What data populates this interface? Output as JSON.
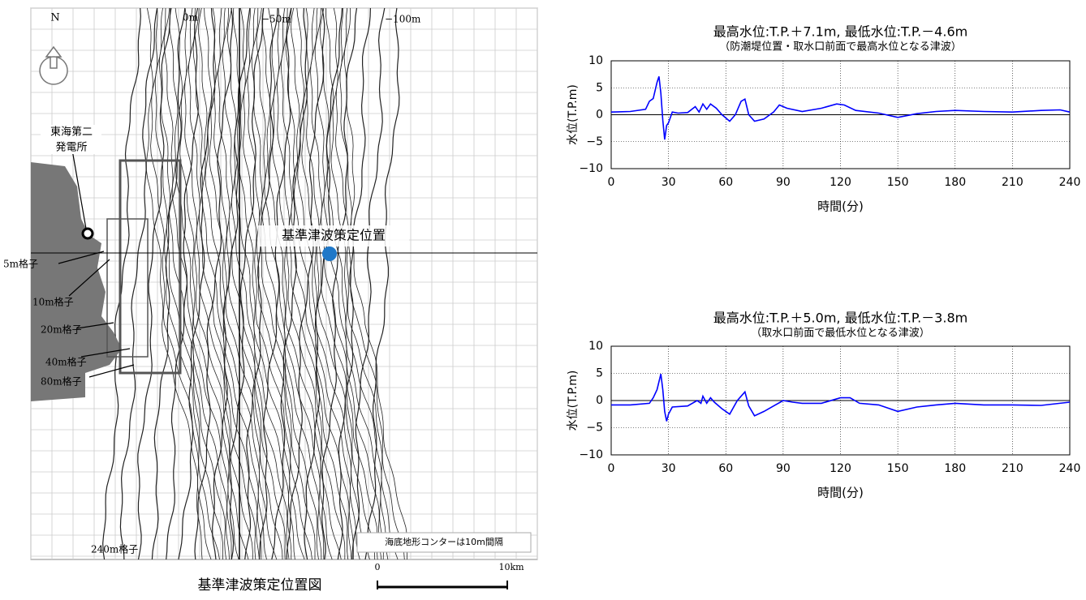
{
  "map": {
    "north": "N",
    "depth_0": "0m",
    "depth_50": "−50m",
    "depth_100": "−100m",
    "plant_line1": "東海第二",
    "plant_line2": "発電所",
    "grid_5": "5m格子",
    "grid_10": "10m格子",
    "grid_20": "20m格子",
    "grid_40": "40m格子",
    "grid_80": "80m格子",
    "grid_240": "240m格子",
    "site_label": "基準津波策定位置",
    "contour_note": "海底地形コンターは10m間隔",
    "scale_start": "0",
    "scale_end": "10km",
    "caption": "基準津波策定位置図"
  },
  "chart_data": [
    {
      "type": "line",
      "title": "最高水位:T.P.＋7.1m, 最低水位:T.P.－4.6m",
      "subtitle": "（防潮堤位置・取水口前面で最高水位となる津波）",
      "x_label": "時間(分)",
      "y_label": "水位(T.P.m)",
      "x": [
        0,
        10,
        18,
        20,
        22,
        24,
        25,
        26,
        27,
        28,
        29,
        30,
        32,
        35,
        40,
        44,
        46,
        48,
        50,
        52,
        55,
        58,
        62,
        65,
        68,
        70,
        72,
        75,
        80,
        85,
        88,
        92,
        100,
        110,
        118,
        122,
        128,
        140,
        150,
        160,
        170,
        180,
        195,
        210,
        225,
        235,
        240
      ],
      "series": [
        {
          "name": "水位",
          "color": "#0000ff",
          "values": [
            0.5,
            0.6,
            1,
            2.5,
            3,
            6,
            7.1,
            4,
            -1,
            -4.6,
            -2,
            -1.5,
            0.5,
            0.3,
            0.4,
            1.5,
            0.5,
            2,
            1,
            2,
            1.2,
            0,
            -1.2,
            0,
            2.5,
            2.9,
            0,
            -1.2,
            -0.8,
            0.5,
            1.8,
            1.2,
            0.6,
            1.2,
            2,
            1.8,
            0.8,
            0.3,
            -0.5,
            0.2,
            0.6,
            0.8,
            0.6,
            0.5,
            0.8,
            0.9,
            0.5
          ]
        }
      ],
      "xlim": [
        0,
        240
      ],
      "xticks": [
        0,
        30,
        60,
        90,
        120,
        150,
        180,
        210,
        240
      ],
      "ylim": [
        -10,
        10
      ],
      "yticks": [
        {
          "value": -10,
          "label": "−10"
        },
        {
          "value": -5,
          "label": "−5"
        },
        0,
        5,
        10
      ],
      "grid": true
    },
    {
      "type": "line",
      "title": "最高水位:T.P.＋5.0m, 最低水位:T.P.－3.8m",
      "subtitle": "（取水口前面で最低水位となる津波）",
      "x_label": "時間(分)",
      "y_label": "水位(T.P.m)",
      "x": [
        0,
        10,
        20,
        22,
        24,
        26,
        27,
        28,
        29,
        30,
        32,
        40,
        45,
        47,
        48,
        50,
        52,
        54,
        58,
        62,
        66,
        70,
        72,
        75,
        80,
        85,
        90,
        95,
        100,
        110,
        120,
        125,
        130,
        140,
        150,
        160,
        170,
        180,
        195,
        210,
        225,
        240
      ],
      "series": [
        {
          "name": "水位",
          "color": "#0000ff",
          "values": [
            -0.8,
            -0.8,
            -0.5,
            0.5,
            2,
            4.9,
            2,
            -2,
            -3.8,
            -2.5,
            -1.2,
            -1,
            0,
            -0.5,
            0.8,
            -0.5,
            0.5,
            -0.3,
            -1.5,
            -2.5,
            0,
            1.6,
            -1,
            -2.8,
            -2,
            -1,
            0,
            -0.3,
            -0.5,
            -0.5,
            0.5,
            0.5,
            -0.5,
            -0.8,
            -2,
            -1.2,
            -0.8,
            -0.5,
            -0.8,
            -0.8,
            -0.9,
            -0.3
          ]
        }
      ],
      "xlim": [
        0,
        240
      ],
      "xticks": [
        0,
        30,
        60,
        90,
        120,
        150,
        180,
        210,
        240
      ],
      "ylim": [
        -10,
        10
      ],
      "yticks": [
        {
          "value": -10,
          "label": "−10"
        },
        {
          "value": -5,
          "label": "−5"
        },
        0,
        5,
        10
      ],
      "grid": true
    }
  ]
}
